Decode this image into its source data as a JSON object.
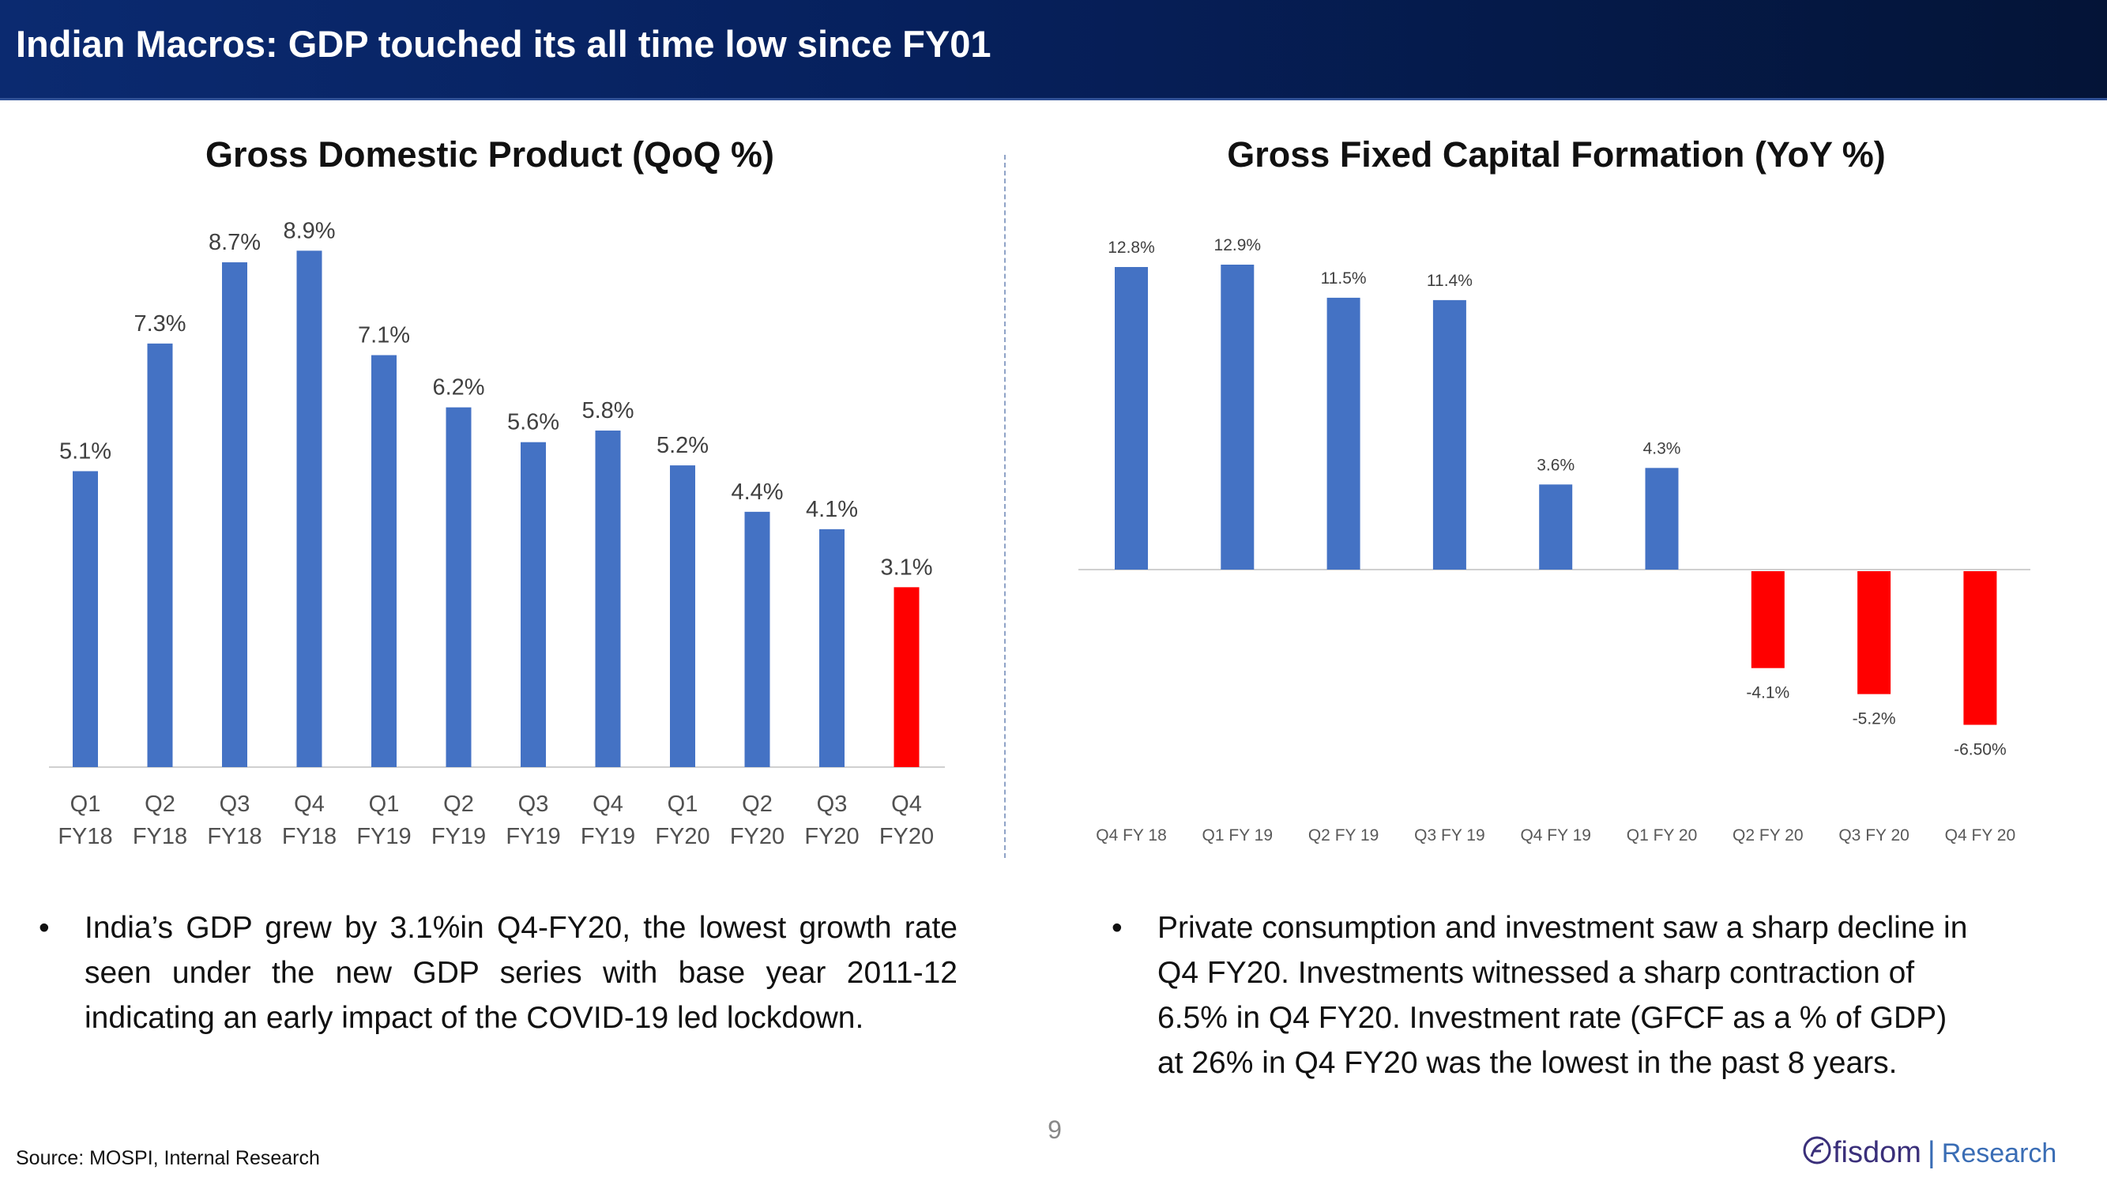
{
  "header": {
    "title": "Indian Macros: GDP touched its all time low since FY01"
  },
  "chart_data": [
    {
      "type": "bar",
      "title": "Gross Domestic Product (QoQ %)",
      "categories": [
        [
          "Q1",
          "FY18"
        ],
        [
          "Q2",
          "FY18"
        ],
        [
          "Q3",
          "FY18"
        ],
        [
          "Q4",
          "FY18"
        ],
        [
          "Q1",
          "FY19"
        ],
        [
          "Q2",
          "FY19"
        ],
        [
          "Q3",
          "FY19"
        ],
        [
          "Q4",
          "FY19"
        ],
        [
          "Q1",
          "FY20"
        ],
        [
          "Q2",
          "FY20"
        ],
        [
          "Q3",
          "FY20"
        ],
        [
          "Q4",
          "FY20"
        ]
      ],
      "values": [
        5.1,
        7.3,
        8.7,
        8.9,
        7.1,
        6.2,
        5.6,
        5.8,
        5.2,
        4.4,
        4.1,
        3.1
      ],
      "labels": [
        "5.1%",
        "7.3%",
        "8.7%",
        "8.9%",
        "7.1%",
        "6.2%",
        "5.6%",
        "5.8%",
        "5.2%",
        "4.4%",
        "4.1%",
        "3.1%"
      ],
      "highlight_index": 11,
      "ylim": [
        0,
        9
      ],
      "xlabel": "",
      "ylabel": ""
    },
    {
      "type": "bar",
      "title": "Gross Fixed Capital Formation (YoY %)",
      "categories": [
        "Q4 FY 18",
        "Q1 FY 19",
        "Q2 FY 19",
        "Q3 FY 19",
        "Q4 FY 19",
        "Q1 FY 20",
        "Q2 FY 20",
        "Q3 FY 20",
        "Q4 FY 20"
      ],
      "values": [
        12.8,
        12.9,
        11.5,
        11.4,
        3.6,
        4.3,
        -4.1,
        -5.2,
        -6.5
      ],
      "labels": [
        "12.8%",
        "12.9%",
        "11.5%",
        "11.4%",
        "3.6%",
        "4.3%",
        "-4.1%",
        "-5.2%",
        "-6.50%"
      ],
      "ylim": [
        -6.5,
        12.9
      ],
      "xlabel": "",
      "ylabel": ""
    }
  ],
  "colors": {
    "positive_bar": "#4472c4",
    "highlight_bar": "#ff0000",
    "header_bg": "#06205c"
  },
  "bullets": {
    "left": "India’s GDP grew by 3.1%in Q4-FY20, the lowest growth rate seen under the new GDP series with base year 2011-12 indicating an early impact of the COVID-19 led lockdown.",
    "right": "Private consumption and investment saw a sharp decline in Q4 FY20. Investments witnessed a sharp contraction of 6.5% in Q4 FY20. Investment rate (GFCF as a % of GDP) at 26% in Q4 FY20 was the lowest in the past 8 years.",
    "symbol": "•"
  },
  "footer": {
    "page_number": "9",
    "source": "Source: MOSPI, Internal Research",
    "brand_name": "fisdom",
    "brand_separator": "|",
    "brand_suffix": "Research"
  }
}
